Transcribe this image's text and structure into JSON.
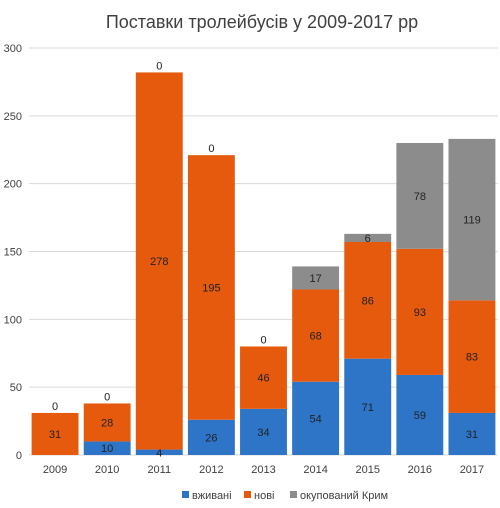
{
  "chart_data": {
    "type": "bar",
    "stacked": true,
    "title": "Поставки тролейбусів у 2009-2017 рр",
    "xlabel": "",
    "ylabel": "",
    "ylim": [
      0,
      300
    ],
    "yticks": [
      "0",
      "50",
      "100",
      "150",
      "200",
      "250",
      "300"
    ],
    "grid": true,
    "legend_position": "bottom",
    "categories": [
      "2009",
      "2010",
      "2011",
      "2012",
      "2013",
      "2014",
      "2015",
      "2016",
      "2017"
    ],
    "series": [
      {
        "name": "вживані",
        "color": "#2e75c8",
        "values": [
          0,
          10,
          4,
          26,
          34,
          54,
          71,
          59,
          31
        ]
      },
      {
        "name": "нові",
        "color": "#e65a0e",
        "values": [
          31,
          28,
          278,
          195,
          46,
          68,
          86,
          93,
          83
        ]
      },
      {
        "name": "окупований Крим",
        "color": "#8c8c8c",
        "values": [
          0,
          0,
          0,
          0,
          0,
          17,
          6,
          78,
          119
        ]
      }
    ],
    "data_labels": [
      [
        "0",
        "10",
        "4",
        "26",
        "34",
        "54",
        "71",
        "59",
        "31"
      ],
      [
        "31",
        "28",
        "278",
        "195",
        "46",
        "68",
        "86",
        "93",
        "83"
      ],
      [
        "0",
        "0",
        "0",
        "0",
        "0",
        "17",
        "6",
        "78",
        "119"
      ]
    ]
  }
}
